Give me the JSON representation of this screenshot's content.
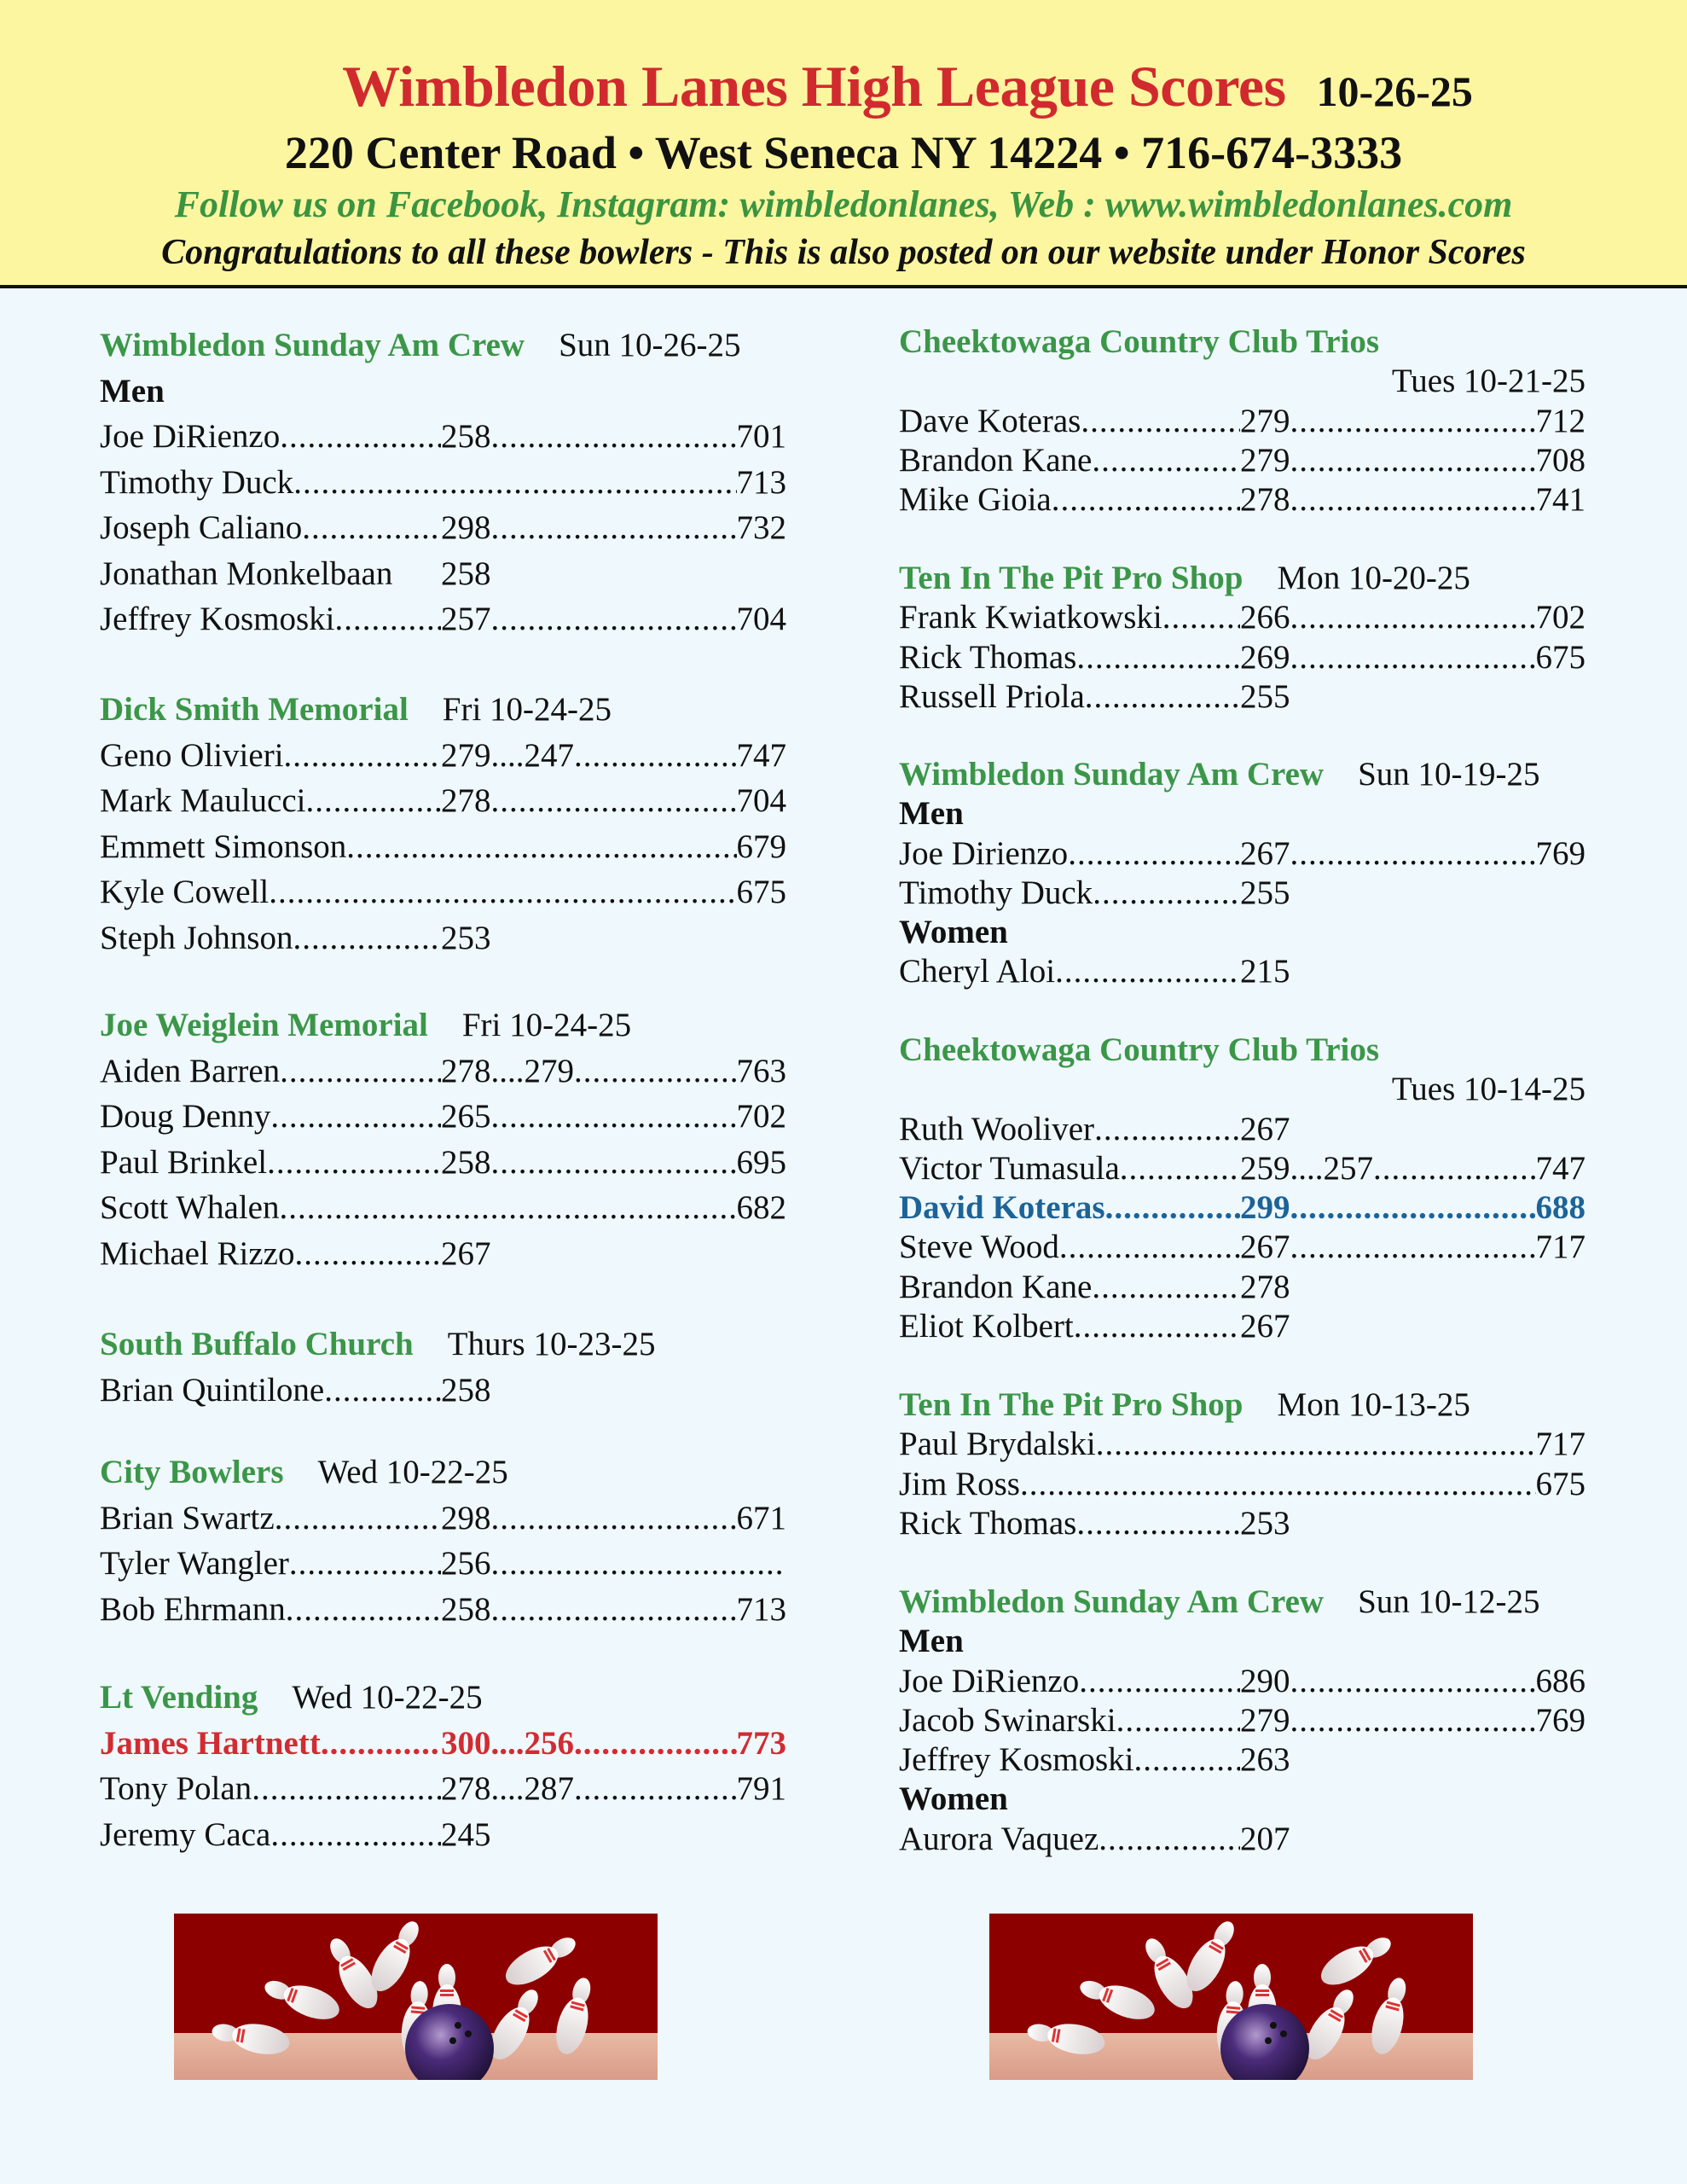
{
  "header": {
    "title": "Wimbledon Lanes High League Scores",
    "date": "10-26-25",
    "address": "220 Center Road • West Seneca NY 14224 • 716-674-3333",
    "follow": "Follow us on Facebook, Instagram: wimbledonlanes, Web : www.wimbledonlanes.com",
    "congrats": "Congratulations to all these bowlers - This is also posted on our website under Honor Scores"
  },
  "colors": {
    "title": "#d02a2e",
    "league": "#3b9648",
    "highlight_blue": "#1c6398",
    "highlight_red": "#d22b32",
    "header_bg": "#fdf6a0",
    "page_bg": "#eff8fc"
  },
  "left": [
    {
      "league": "Wimbledon Sunday Am Crew",
      "date": "Sun 10-26-25",
      "rows": [
        {
          "label": "Men"
        },
        {
          "name": "Joe DiRienzo",
          "g1": "258",
          "series": "701"
        },
        {
          "name": "Timothy Duck ",
          "series": "713"
        },
        {
          "name": "Joseph Caliano ",
          "g1": "298",
          "series": "732"
        },
        {
          "name": "Jonathan Monkelbaan ",
          "g1": "258",
          "noleader": true
        },
        {
          "name": "Jeffrey Kosmoski ",
          "g1": "257",
          "series": "704"
        }
      ]
    },
    {
      "league": "Dick Smith Memorial",
      "date": "Fri 10-24-25",
      "rows": [
        {
          "name": "Geno Olivieri",
          "g1": "279",
          "g2": "247",
          "series": "747"
        },
        {
          "name": "Mark Maulucci ",
          "g1": "278",
          "series": "704"
        },
        {
          "name": "Emmett Simonson ",
          "series": "679"
        },
        {
          "name": "Kyle Cowell ",
          "series": "675"
        },
        {
          "name": "Steph Johnson",
          "g1": "253"
        }
      ]
    },
    {
      "league": "Joe Weiglein Memorial",
      "date": "Fri 10-24-25",
      "rows": [
        {
          "name": "Aiden Barren ",
          "g1": "278",
          "g2": "279",
          "series": "763"
        },
        {
          "name": "Doug Denny ",
          "g1": "265",
          "series": "702"
        },
        {
          "name": "Paul Brinkel ",
          "g1": "258",
          "series": "695"
        },
        {
          "name": "Scott Whalen ",
          "series": "682"
        },
        {
          "name": "Michael Rizzo ",
          "g1": "267"
        }
      ]
    },
    {
      "league": "South Buffalo Church",
      "date": "Thurs 10-23-25",
      "rows": [
        {
          "name": "Brian Quintilone ",
          "g1": "258"
        }
      ]
    },
    {
      "league": "City Bowlers",
      "date": "Wed 10-22-25",
      "rows": [
        {
          "name": "Brian Swartz ",
          "g1": "298",
          "series": "671"
        },
        {
          "name": "Tyler Wangler ",
          "g1": "256",
          "series": ""
        },
        {
          "name": "Bob Ehrmann ",
          "g1": "258",
          "series": "713"
        }
      ]
    },
    {
      "league": "Lt Vending",
      "date": "Wed 10-22-25",
      "rows": [
        {
          "name": "James Hartnett",
          "g1": "300",
          "g2": "256",
          "series": "773",
          "highlight": "red"
        },
        {
          "name": "Tony Polan ",
          "g1": "278",
          "g2": "287",
          "series": "791"
        },
        {
          "name": "Jeremy Caca ",
          "g1": "245"
        }
      ]
    }
  ],
  "right": [
    {
      "league": "Cheektowaga Country Club Trios",
      "date": "Tues 10-21-25",
      "date_below": true,
      "rows": [
        {
          "name": "Dave Koteras",
          "g1": "279",
          "series": "712"
        },
        {
          "name": "Brandon Kane",
          "g1": "279",
          "series": "708"
        },
        {
          "name": "Mike Gioia ",
          "g1": "278",
          "series": "741"
        }
      ]
    },
    {
      "league": "Ten In The Pit Pro Shop",
      "date": "Mon 10-20-25",
      "rows": [
        {
          "name": "Frank Kwiatkowski ",
          "g1": "266",
          "series": "702"
        },
        {
          "name": "Rick Thomas ",
          "g1": "269",
          "series": "675"
        },
        {
          "name": "Russell Priola ",
          "g1": "255"
        }
      ]
    },
    {
      "league": "Wimbledon Sunday Am Crew",
      "date": "Sun 10-19-25",
      "rows": [
        {
          "label": "Men"
        },
        {
          "name": "Joe Dirienzo",
          "g1": "267",
          "series": "769"
        },
        {
          "name": "Timothy Duck ",
          "g1": "255"
        },
        {
          "label": "Women"
        },
        {
          "name": "Cheryl Aloi ",
          "g1": "215"
        }
      ]
    },
    {
      "league": "Cheektowaga Country Club Trios",
      "date": "Tues 10-14-25",
      "date_below": true,
      "rows": [
        {
          "name": "Ruth Wooliver ",
          "g1": "267"
        },
        {
          "name": "Victor Tumasula",
          "g1": "259",
          "g2": "257",
          "series": "747"
        },
        {
          "name": "David Koteras ",
          "g1": "299",
          "series": "688",
          "highlight": "blue"
        },
        {
          "name": "Steve Wood ",
          "g1": "267",
          "series": "717"
        },
        {
          "name": "Brandon Kane",
          "g1": "278"
        },
        {
          "name": "Eliot Kolbert ",
          "g1": "267"
        }
      ]
    },
    {
      "league": "Ten In The Pit Pro Shop",
      "date": "Mon 10-13-25",
      "rows": [
        {
          "name": "Paul Brydalski",
          "series": "717"
        },
        {
          "name": "Jim Ross",
          "series": "675"
        },
        {
          "name": "Rick Thomas ",
          "g1": "253"
        }
      ]
    },
    {
      "league": "Wimbledon Sunday Am Crew",
      "date": "Sun 10-12-25",
      "rows": [
        {
          "label": "Men"
        },
        {
          "name": "Joe DiRienzo",
          "g1": "290",
          "series": "686"
        },
        {
          "name": "Jacob Swinarski ",
          "g1": "279",
          "series": "769"
        },
        {
          "name": "Jeffrey Kosmoski ",
          "g1": "263"
        },
        {
          "label": "Women"
        },
        {
          "name": "Aurora Vaquez",
          "g1": "207"
        }
      ]
    }
  ],
  "images": [
    {
      "icon": "bowling-strike-image"
    },
    {
      "icon": "bowling-strike-image"
    }
  ]
}
